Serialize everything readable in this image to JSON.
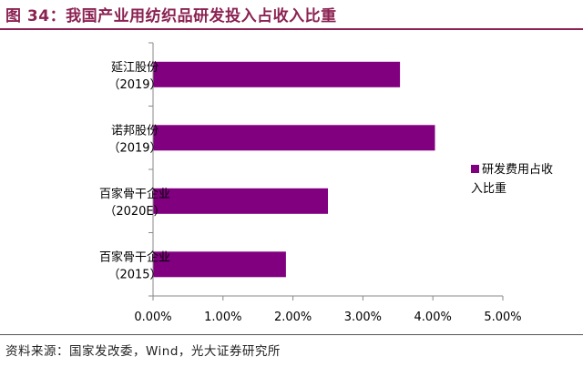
{
  "figure": {
    "title": "图 34：我国产业用纺织品研发投入占收入比重",
    "source": "资料来源：国家发改委，Wind，光大证券研究所"
  },
  "chart_data": {
    "type": "bar",
    "orientation": "horizontal",
    "categories": [
      [
        "延江股份",
        "（2019）"
      ],
      [
        "诺邦股份",
        "（2019）"
      ],
      [
        "百家骨干企业",
        "（2020E）"
      ],
      [
        "百家骨干企业",
        "（2015）"
      ]
    ],
    "series": [
      {
        "name": "研发费用占收入比重",
        "values": [
          3.53,
          4.03,
          2.5,
          1.9
        ],
        "color": "#800080"
      }
    ],
    "xlim": [
      0,
      5
    ],
    "xticks": [
      "0.00%",
      "1.00%",
      "2.00%",
      "3.00%",
      "4.00%",
      "5.00%"
    ],
    "legend": {
      "placement": "right",
      "lines": [
        "研发费用占收",
        "入比重"
      ]
    },
    "grid": false
  }
}
